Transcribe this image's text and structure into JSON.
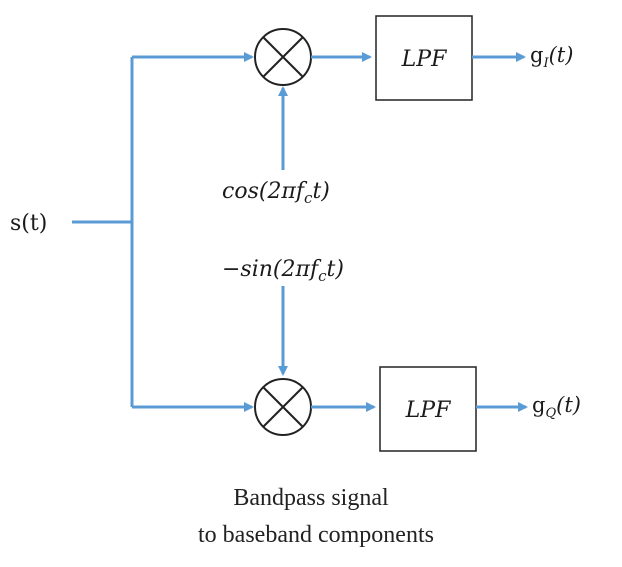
{
  "input_label": "s(t)",
  "top_branch": {
    "oscillator_label": "cos(2πf",
    "oscillator_sub": "c",
    "oscillator_tail": "t)",
    "filter_label": "LPF",
    "output_label_base": "g",
    "output_label_sub": "I",
    "output_label_tail": "(t)"
  },
  "bottom_branch": {
    "oscillator_label": "−sin(2πf",
    "oscillator_sub": "c",
    "oscillator_tail": "t)",
    "filter_label": "LPF",
    "output_label_base": "g",
    "output_label_sub": "Q",
    "output_label_tail": "(t)"
  },
  "caption": {
    "line1": "Bandpass signal",
    "line2": "to baseband components"
  },
  "colors": {
    "wire": "#5b9bd5",
    "outline": "#222222"
  }
}
